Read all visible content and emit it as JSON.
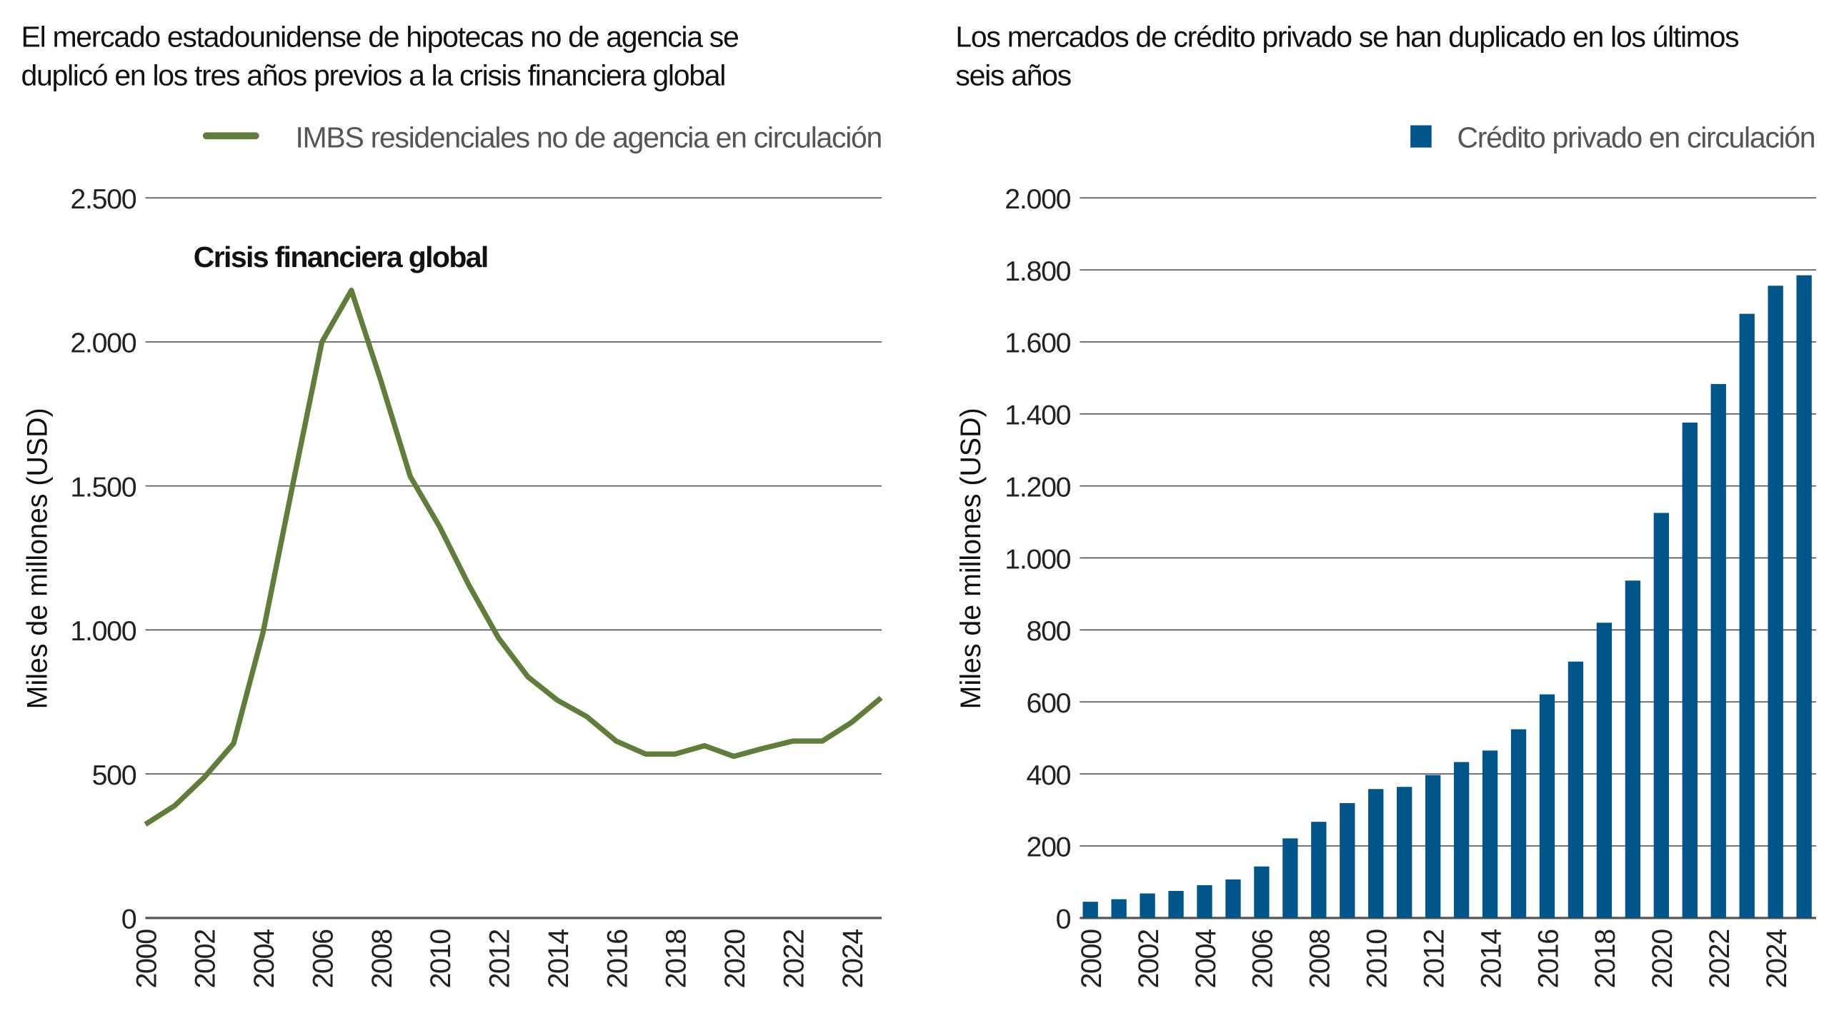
{
  "chart_data": [
    {
      "type": "line",
      "title_lines": [
        "El mercado estadounidense de hipotecas no de agencia se",
        "duplicó en los tres años previos a la crisis financiera global"
      ],
      "legend": "IMBS residenciales no de agencia en circulación",
      "legend_position": "top-right",
      "ylabel": "Miles de millones (USD)",
      "xlabel": "",
      "ylim": [
        0,
        2500
      ],
      "yticks": [
        0,
        500,
        1000,
        1500,
        2000,
        2500
      ],
      "ytick_labels": [
        "0",
        "500",
        "1.000",
        "1.500",
        "2.000",
        "2.500"
      ],
      "xticks": [
        "2000",
        "2002",
        "2004",
        "2006",
        "2008",
        "2010",
        "2012",
        "2014",
        "2016",
        "2018",
        "2020",
        "2022",
        "2024"
      ],
      "grid": "horizontal",
      "annotation": "Crisis financiera global",
      "color": "#5e7e3a",
      "series": [
        {
          "name": "IMBS residenciales no de agencia en circulación",
          "x": [
            2000,
            2001,
            2002,
            2003,
            2004,
            2005,
            2006,
            2007,
            2008,
            2009,
            2010,
            2011,
            2012,
            2013,
            2014,
            2015,
            2016,
            2017,
            2018,
            2019,
            2020,
            2021,
            2022,
            2023,
            2024,
            2025
          ],
          "values": [
            325,
            390,
            488,
            606,
            992,
            1500,
            2000,
            2179,
            1866,
            1533,
            1358,
            1154,
            972,
            837,
            756,
            699,
            614,
            569,
            569,
            598,
            561,
            589,
            614,
            614,
            679,
            764
          ]
        }
      ]
    },
    {
      "type": "bar",
      "title_lines": [
        "Los mercados de crédito privado se han duplicado en los últimos",
        "seis años"
      ],
      "legend": "Crédito privado en circulación",
      "legend_position": "top-right",
      "ylabel": "Miles de millones (USD)",
      "xlabel": "",
      "ylim": [
        0,
        2000
      ],
      "yticks": [
        0,
        200,
        400,
        600,
        800,
        1000,
        1200,
        1400,
        1600,
        1800,
        2000
      ],
      "ytick_labels": [
        "0",
        "200",
        "400",
        "600",
        "800",
        "1.000",
        "1.200",
        "1.400",
        "1.600",
        "1.800",
        "2.000"
      ],
      "xticks": [
        "2000",
        "2002",
        "2004",
        "2006",
        "2008",
        "2010",
        "2012",
        "2014",
        "2016",
        "2018",
        "2020",
        "2022",
        "2024"
      ],
      "grid": "horizontal",
      "color": "#00568a",
      "categories": [
        2000,
        2001,
        2002,
        2003,
        2004,
        2005,
        2006,
        2007,
        2008,
        2009,
        2010,
        2011,
        2012,
        2013,
        2014,
        2015,
        2016,
        2017,
        2018,
        2019,
        2020,
        2021,
        2022,
        2023,
        2024,
        2025
      ],
      "series": [
        {
          "name": "Crédito privado en circulación",
          "values": [
            45,
            52,
            68,
            75,
            91,
            107,
            143,
            221,
            267,
            319,
            358,
            364,
            397,
            433,
            465,
            524,
            621,
            712,
            820,
            937,
            1125,
            1376,
            1483,
            1678,
            1756,
            1785
          ]
        }
      ]
    }
  ]
}
